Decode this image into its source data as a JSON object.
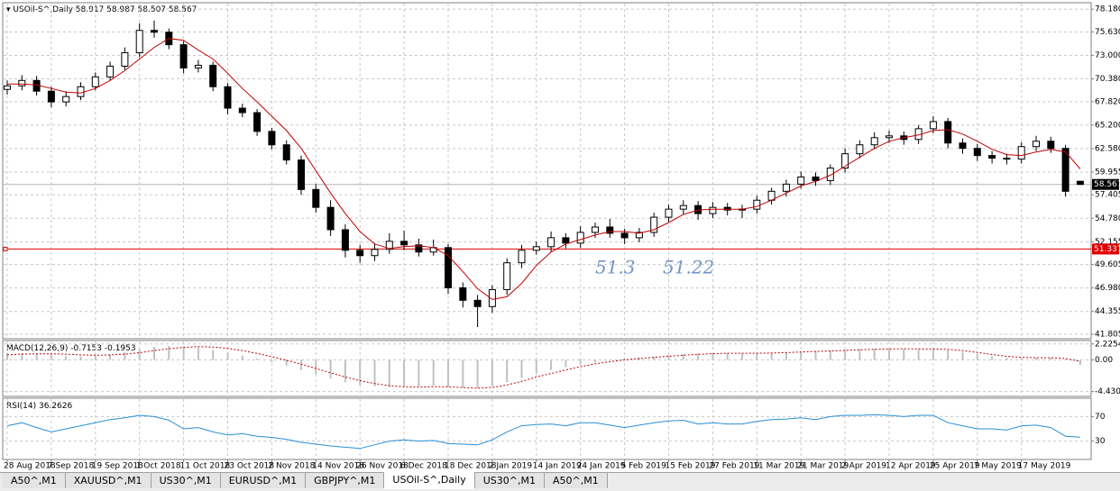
{
  "chart_data": [
    {
      "type": "candlestick",
      "title": "USOil-S^,Daily",
      "categories": [
        "28 Aug 2018",
        null,
        null,
        "7 Sep 2018",
        null,
        null,
        "19 Sep 2018",
        null,
        null,
        "1 Oct 2018",
        null,
        null,
        "11 Oct 2018",
        null,
        null,
        "23 Oct 2018",
        null,
        null,
        "2 Nov 2018",
        null,
        null,
        "14 Nov 2018",
        null,
        null,
        "26 Nov 2018",
        null,
        null,
        "6 Dec 2018",
        null,
        null,
        "18 Dec 2018",
        null,
        null,
        "2 Jan 2019",
        null,
        null,
        "14 Jan 2019",
        null,
        null,
        "24 Jan 2019",
        null,
        null,
        "5 Feb 2019",
        null,
        null,
        "15 Feb 2019",
        null,
        null,
        "27 Feb 2019",
        null,
        null,
        "11 Mar 2019",
        null,
        null,
        "21 Mar 2019",
        null,
        null,
        "2 Apr 2019",
        null,
        null,
        "12 Apr 2019",
        null,
        null,
        "25 Apr 2019",
        null,
        null,
        "7 May 2019",
        null,
        null,
        "17 May 2019",
        null,
        null,
        null,
        null
      ],
      "open": [
        69.2,
        69.6,
        70.2,
        69.0,
        67.8,
        68.4,
        69.5,
        70.6,
        71.8,
        73.3,
        75.8,
        75.6,
        74.2,
        71.6,
        71.9,
        69.5,
        67.1,
        66.6,
        64.5,
        63.0,
        61.3,
        58.0,
        56.0,
        53.5,
        51.2,
        50.6,
        51.3,
        52.2,
        51.8,
        51.0,
        51.5,
        47.0,
        45.6,
        44.9,
        46.8,
        49.8,
        51.2,
        51.6,
        52.6,
        52.0,
        53.2,
        53.8,
        53.1,
        52.6,
        53.2,
        54.9,
        55.8,
        56.2,
        55.3,
        56.0,
        55.7,
        55.8,
        56.8,
        57.8,
        58.6,
        59.4,
        59.0,
        60.4,
        62.0,
        63.0,
        63.8,
        64.0,
        63.6,
        64.8,
        65.6,
        63.2,
        62.6,
        61.8,
        61.5,
        61.4,
        62.8,
        63.4,
        62.6,
        58.917
      ],
      "high": [
        70.2,
        70.8,
        70.7,
        69.5,
        69.0,
        70.0,
        71.1,
        72.3,
        73.9,
        76.6,
        76.9,
        76.0,
        74.6,
        72.5,
        72.3,
        69.9,
        67.6,
        67.0,
        64.9,
        63.5,
        61.8,
        58.6,
        56.8,
        54.1,
        51.8,
        52.0,
        53.1,
        53.4,
        52.5,
        52.4,
        51.9,
        47.6,
        46.2,
        47.3,
        50.3,
        51.8,
        52.2,
        53.3,
        53.1,
        53.9,
        54.3,
        54.7,
        53.6,
        53.7,
        55.4,
        56.3,
        56.8,
        56.7,
        56.6,
        56.5,
        56.3,
        57.3,
        58.2,
        59.1,
        60.0,
        59.9,
        60.8,
        62.6,
        63.5,
        64.4,
        64.6,
        64.5,
        65.2,
        66.2,
        66.0,
        63.7,
        63.1,
        62.3,
        62.0,
        63.3,
        64.0,
        63.9,
        63.0,
        58.987
      ],
      "low": [
        68.6,
        69.1,
        68.5,
        67.2,
        67.3,
        68.0,
        69.1,
        70.2,
        71.4,
        72.8,
        75.0,
        73.7,
        71.0,
        71.1,
        69.0,
        66.4,
        66.1,
        64.0,
        62.5,
        60.8,
        57.4,
        55.4,
        52.8,
        50.4,
        49.8,
        50.0,
        50.8,
        51.2,
        50.5,
        50.6,
        46.3,
        44.8,
        42.6,
        44.2,
        46.2,
        49.2,
        50.7,
        51.0,
        51.4,
        51.5,
        52.6,
        52.6,
        51.9,
        52.1,
        52.7,
        54.4,
        55.2,
        54.6,
        54.8,
        55.1,
        54.8,
        55.3,
        56.3,
        57.2,
        58.1,
        58.4,
        58.5,
        59.9,
        61.5,
        62.5,
        63.2,
        63.0,
        63.1,
        64.3,
        62.6,
        62.0,
        61.2,
        60.9,
        60.8,
        60.9,
        62.3,
        62.1,
        57.2,
        58.507
      ],
      "close": [
        69.6,
        70.2,
        69.0,
        67.8,
        68.4,
        69.5,
        70.6,
        71.8,
        73.3,
        75.8,
        75.6,
        74.2,
        71.6,
        71.9,
        69.5,
        67.1,
        66.6,
        64.5,
        63.0,
        61.3,
        58.0,
        56.0,
        53.5,
        51.2,
        50.6,
        51.3,
        52.2,
        51.8,
        51.0,
        51.5,
        47.0,
        45.6,
        44.9,
        46.8,
        49.8,
        51.2,
        51.6,
        52.6,
        52.0,
        53.2,
        53.8,
        53.1,
        52.6,
        53.2,
        54.9,
        55.8,
        56.2,
        55.3,
        56.0,
        55.7,
        55.8,
        56.8,
        57.8,
        58.6,
        59.4,
        59.0,
        60.4,
        62.0,
        63.0,
        63.8,
        64.0,
        63.6,
        64.8,
        65.6,
        63.2,
        62.6,
        61.8,
        61.5,
        61.4,
        62.8,
        63.4,
        62.6,
        57.8,
        58.567
      ],
      "up_color": "#ffffff",
      "down_color": "#000000",
      "ma": {
        "color": "#c00000",
        "values": [
          69.8,
          69.8,
          69.7,
          69.3,
          68.9,
          68.8,
          69.3,
          70.2,
          71.3,
          72.6,
          73.9,
          74.9,
          74.7,
          73.6,
          72.6,
          71.0,
          69.3,
          67.8,
          66.2,
          64.6,
          62.6,
          60.1,
          57.6,
          55.3,
          53.3,
          51.9,
          51.4,
          51.6,
          51.7,
          51.5,
          50.6,
          48.8,
          46.9,
          45.7,
          46.0,
          47.5,
          49.5,
          51.0,
          51.9,
          52.4,
          52.9,
          53.3,
          53.3,
          53.1,
          53.5,
          54.3,
          55.2,
          55.7,
          55.8,
          55.8,
          55.8,
          56.1,
          56.8,
          57.6,
          58.4,
          58.9,
          59.6,
          60.6,
          61.6,
          62.6,
          63.4,
          63.8,
          64.1,
          64.6,
          64.7,
          64.2,
          63.4,
          62.5,
          61.9,
          61.8,
          62.2,
          62.5,
          62.2,
          60.3
        ]
      },
      "hline": {
        "value": 51.337,
        "color": "#e00000"
      },
      "annotations": [
        "51.3",
        "51.22"
      ],
      "ylim": [
        41.3,
        78.9
      ],
      "yticks": [
        {
          "value": 78.18,
          "label": "78.180"
        },
        {
          "value": 75.63,
          "label": "75.630"
        },
        {
          "value": 73.0,
          "label": "73.000"
        },
        {
          "value": 70.38,
          "label": "70.380"
        },
        {
          "value": 67.82,
          "label": "67.820"
        },
        {
          "value": 65.2,
          "label": "65.200"
        },
        {
          "value": 62.58,
          "label": "62.580"
        },
        {
          "value": 59.955,
          "label": "59.955"
        },
        {
          "value": 57.405,
          "label": "57.405"
        },
        {
          "value": 54.78,
          "label": "54.780"
        },
        {
          "value": 52.155,
          "label": "52.155"
        },
        {
          "value": 49.605,
          "label": "49.605"
        },
        {
          "value": 46.98,
          "label": "46.980"
        },
        {
          "value": 44.355,
          "label": "44.355"
        },
        {
          "value": 41.805,
          "label": "41.805"
        }
      ],
      "grid": true
    },
    {
      "type": "macd",
      "title": "MACD(12,26,9)",
      "histogram": [
        0.9,
        0.95,
        0.9,
        0.7,
        0.55,
        0.5,
        0.6,
        0.8,
        1.1,
        1.5,
        1.8,
        1.95,
        1.9,
        1.7,
        1.4,
        1.0,
        0.6,
        0.2,
        -0.3,
        -0.8,
        -1.4,
        -2.0,
        -2.6,
        -3.1,
        -3.5,
        -3.7,
        -3.8,
        -3.75,
        -3.7,
        -3.6,
        -3.8,
        -3.9,
        -3.95,
        -3.6,
        -3.1,
        -2.5,
        -1.9,
        -1.4,
        -1.0,
        -0.6,
        -0.3,
        0.0,
        0.15,
        0.3,
        0.45,
        0.65,
        0.8,
        0.9,
        0.95,
        0.95,
        0.9,
        0.9,
        1.0,
        1.1,
        1.2,
        1.25,
        1.3,
        1.4,
        1.5,
        1.55,
        1.55,
        1.5,
        1.5,
        1.55,
        1.4,
        1.1,
        0.8,
        0.5,
        0.3,
        0.25,
        0.3,
        0.3,
        0.1,
        -0.7153
      ],
      "signal": [
        0.7,
        0.8,
        0.85,
        0.85,
        0.8,
        0.7,
        0.65,
        0.7,
        0.8,
        1.0,
        1.3,
        1.55,
        1.75,
        1.85,
        1.8,
        1.6,
        1.3,
        0.9,
        0.45,
        -0.05,
        -0.6,
        -1.2,
        -1.8,
        -2.4,
        -2.9,
        -3.3,
        -3.6,
        -3.75,
        -3.8,
        -3.75,
        -3.75,
        -3.85,
        -3.95,
        -3.85,
        -3.5,
        -3.0,
        -2.4,
        -1.9,
        -1.4,
        -0.95,
        -0.55,
        -0.25,
        0.0,
        0.2,
        0.35,
        0.5,
        0.65,
        0.78,
        0.88,
        0.93,
        0.93,
        0.92,
        0.95,
        1.02,
        1.1,
        1.18,
        1.25,
        1.32,
        1.4,
        1.48,
        1.53,
        1.55,
        1.53,
        1.52,
        1.48,
        1.3,
        1.05,
        0.75,
        0.5,
        0.35,
        0.3,
        0.3,
        0.2,
        -0.1953
      ],
      "histogram_color": "#c0c0c0",
      "signal_color": "#c00000",
      "ylim": [
        -5.1,
        2.7
      ],
      "yticks": [
        2.2254,
        {
          "value": 0,
          "label": "0.00"
        },
        -4.4309
      ]
    },
    {
      "type": "line",
      "title": "RSI(14)",
      "values": [
        55,
        60,
        52,
        45,
        50,
        55,
        60,
        65,
        68,
        72,
        70,
        64,
        50,
        52,
        45,
        40,
        42,
        38,
        36,
        33,
        28,
        25,
        22,
        20,
        18,
        24,
        30,
        32,
        30,
        31,
        26,
        25,
        24,
        32,
        45,
        55,
        57,
        58,
        55,
        60,
        60,
        56,
        52,
        56,
        60,
        63,
        64,
        58,
        60,
        58,
        58,
        62,
        65,
        66,
        68,
        65,
        70,
        72,
        72,
        73,
        72,
        70,
        72,
        72,
        60,
        55,
        50,
        50,
        48,
        55,
        56,
        52,
        38,
        36.2626
      ],
      "color": "#2a8fd6",
      "ylim": [
        0,
        100
      ],
      "yticks": [
        70,
        30
      ]
    }
  ],
  "tabs": [
    "A50^,M1",
    "XAUUSD^,M1",
    "US30^,M1",
    "EURUSD^,M1",
    "GBPJPY^,M1",
    "USOil-S^,Daily",
    "US30^,M1",
    "A50^,M1"
  ],
  "active_tab": 5
}
